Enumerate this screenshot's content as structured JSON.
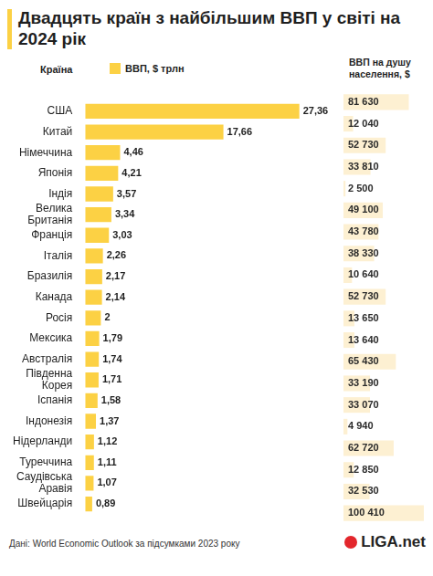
{
  "chart_data": [
    {
      "type": "bar",
      "title": "Двадцять країн з найбільшим ВВП у світі на 2024 рік",
      "y_label": "Країна",
      "categories": [
        "США",
        "Китай",
        "Німеччина",
        "Японія",
        "Індія",
        "Велика Британія",
        "Франція",
        "Італія",
        "Бразилія",
        "Канада",
        "Росія",
        "Мексика",
        "Австралія",
        "Південна Корея",
        "Іспанія",
        "Індонезія",
        "Нідерланди",
        "Туреччина",
        "Саудівська Аравія",
        "Швейцарія"
      ],
      "series": [
        {
          "name": "ВВП, $ трлн",
          "color": "#fcd144",
          "values": [
            27.36,
            17.66,
            4.46,
            4.21,
            3.57,
            3.34,
            3.03,
            2.26,
            2.17,
            2.14,
            2,
            1.79,
            1.74,
            1.71,
            1.58,
            1.37,
            1.12,
            1.11,
            1.07,
            0.89
          ],
          "value_labels": [
            "27,36",
            "17,66",
            "4,46",
            "4,21",
            "3,57",
            "3,34",
            "3,03",
            "2,26",
            "2,17",
            "2,14",
            "2",
            "1,79",
            "1,74",
            "1,71",
            "1,58",
            "1,37",
            "1,12",
            "1,11",
            "1,07",
            "0,89"
          ]
        }
      ],
      "orientation": "horizontal",
      "data_labels": true,
      "legend": "top",
      "tick_labels": "y",
      "grid": false,
      "xlim": [
        0,
        33
      ]
    },
    {
      "type": "bar",
      "title": "ВВП на душу населення, $",
      "categories": [
        "США",
        "Китай",
        "Німеччина",
        "Японія",
        "Індія",
        "Велика Британія",
        "Франція",
        "Італія",
        "Бразилія",
        "Канада",
        "Росія",
        "Мексика",
        "Австралія",
        "Південна Корея",
        "Іспанія",
        "Індонезія",
        "Нідерланди",
        "Туреччина",
        "Саудівська Аравія",
        "Швейцарія"
      ],
      "values": [
        81630,
        12040,
        52730,
        33810,
        2500,
        49100,
        43780,
        38330,
        10640,
        52730,
        13650,
        13640,
        65430,
        33190,
        33070,
        4940,
        62720,
        12850,
        32530,
        100410
      ],
      "value_labels": [
        "81 630",
        "12 040",
        "52 730",
        "33 810",
        "2 500",
        "49 100",
        "43 780",
        "38 330",
        "10 640",
        "52 730",
        "13 650",
        "13 640",
        "65 430",
        "33 190",
        "33 070",
        "4 940",
        "62 720",
        "12 850",
        "32 530",
        "100 410"
      ],
      "color": "#fdf0d2",
      "orientation": "horizontal",
      "data_labels": true,
      "tick_labels": false,
      "grid": false,
      "xlim": [
        0,
        105000
      ]
    }
  ],
  "source": "Дані: World Economic Outlook за підсумками 2023 року",
  "logo": "LIGA.net"
}
